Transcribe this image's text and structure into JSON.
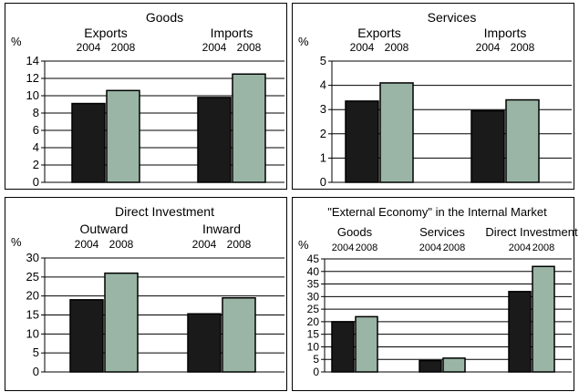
{
  "colors": {
    "y2004": "#1a1a1a",
    "y2008": "#9ab5a5",
    "grid": "#000000"
  },
  "chart_data": [
    {
      "type": "bar",
      "title": "Goods",
      "ylabel": "%",
      "ylim": [
        0,
        14
      ],
      "yticks": [
        0,
        2,
        4,
        6,
        8,
        10,
        12,
        14
      ],
      "grid": true,
      "groups": [
        "Exports",
        "Imports"
      ],
      "series": [
        {
          "name": "2004",
          "values": [
            9.1,
            9.8
          ]
        },
        {
          "name": "2008",
          "values": [
            10.6,
            12.5
          ]
        }
      ]
    },
    {
      "type": "bar",
      "title": "Services",
      "ylabel": "%",
      "ylim": [
        0,
        5
      ],
      "yticks": [
        0,
        1,
        2,
        3,
        4,
        5
      ],
      "grid": true,
      "groups": [
        "Exports",
        "Imports"
      ],
      "series": [
        {
          "name": "2004",
          "values": [
            3.35,
            2.95
          ]
        },
        {
          "name": "2008",
          "values": [
            4.1,
            3.4
          ]
        }
      ]
    },
    {
      "type": "bar",
      "title": "Direct Investment",
      "ylabel": "%",
      "ylim": [
        0,
        30
      ],
      "yticks": [
        0,
        5,
        10,
        15,
        20,
        25,
        30
      ],
      "grid": true,
      "groups": [
        "Outward",
        "Inward"
      ],
      "series": [
        {
          "name": "2004",
          "values": [
            19,
            15.3
          ]
        },
        {
          "name": "2008",
          "values": [
            26,
            19.5
          ]
        }
      ]
    },
    {
      "type": "bar",
      "title": "\"External Economy\" in the Internal Market",
      "ylabel": "%",
      "ylim": [
        0,
        45
      ],
      "yticks": [
        0,
        5,
        10,
        15,
        20,
        25,
        30,
        35,
        40,
        45
      ],
      "grid": true,
      "groups": [
        "Goods",
        "Services",
        "Direct Investment"
      ],
      "series": [
        {
          "name": "2004",
          "values": [
            20,
            4.5,
            32
          ]
        },
        {
          "name": "2008",
          "values": [
            22,
            5.5,
            42
          ]
        }
      ]
    }
  ]
}
